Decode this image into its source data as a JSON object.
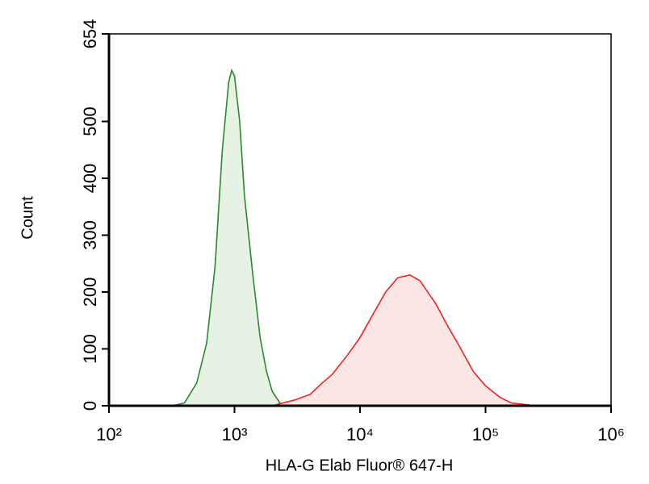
{
  "chart_data": {
    "type": "histogram-area",
    "xlabel": "HLA-G Elab Fluor® 647-H",
    "ylabel": "Count",
    "xscale": "log",
    "xlim": [
      100,
      1000000
    ],
    "xticks": [
      {
        "value": 100,
        "label": "10²"
      },
      {
        "value": 1000,
        "label": "10³"
      },
      {
        "value": 10000,
        "label": "10⁴"
      },
      {
        "value": 100000,
        "label": "10⁵"
      },
      {
        "value": 1000000,
        "label": "10⁶"
      }
    ],
    "ylim": [
      0,
      654
    ],
    "yticks": [
      0,
      100,
      200,
      300,
      400,
      500,
      654
    ],
    "series": [
      {
        "color": "#2a8a2a",
        "fill": "#e6f3e4",
        "x": [
          320,
          400,
          500,
          600,
          700,
          800,
          900,
          950,
          1000,
          1100,
          1200,
          1400,
          1600,
          1800,
          2000,
          2300,
          2500
        ],
        "values": [
          0,
          5,
          40,
          110,
          245,
          450,
          570,
          590,
          580,
          500,
          370,
          230,
          120,
          60,
          25,
          5,
          0
        ]
      },
      {
        "color": "#ee2222",
        "fill": "#fde6e6",
        "x": [
          2000,
          3000,
          4000,
          5000,
          6000,
          8000,
          10000,
          13000,
          16000,
          20000,
          25000,
          30000,
          40000,
          50000,
          60000,
          80000,
          100000,
          130000,
          160000,
          250000
        ],
        "values": [
          0,
          10,
          20,
          40,
          55,
          90,
          120,
          165,
          200,
          225,
          230,
          220,
          180,
          140,
          110,
          60,
          35,
          15,
          5,
          0
        ]
      }
    ]
  }
}
